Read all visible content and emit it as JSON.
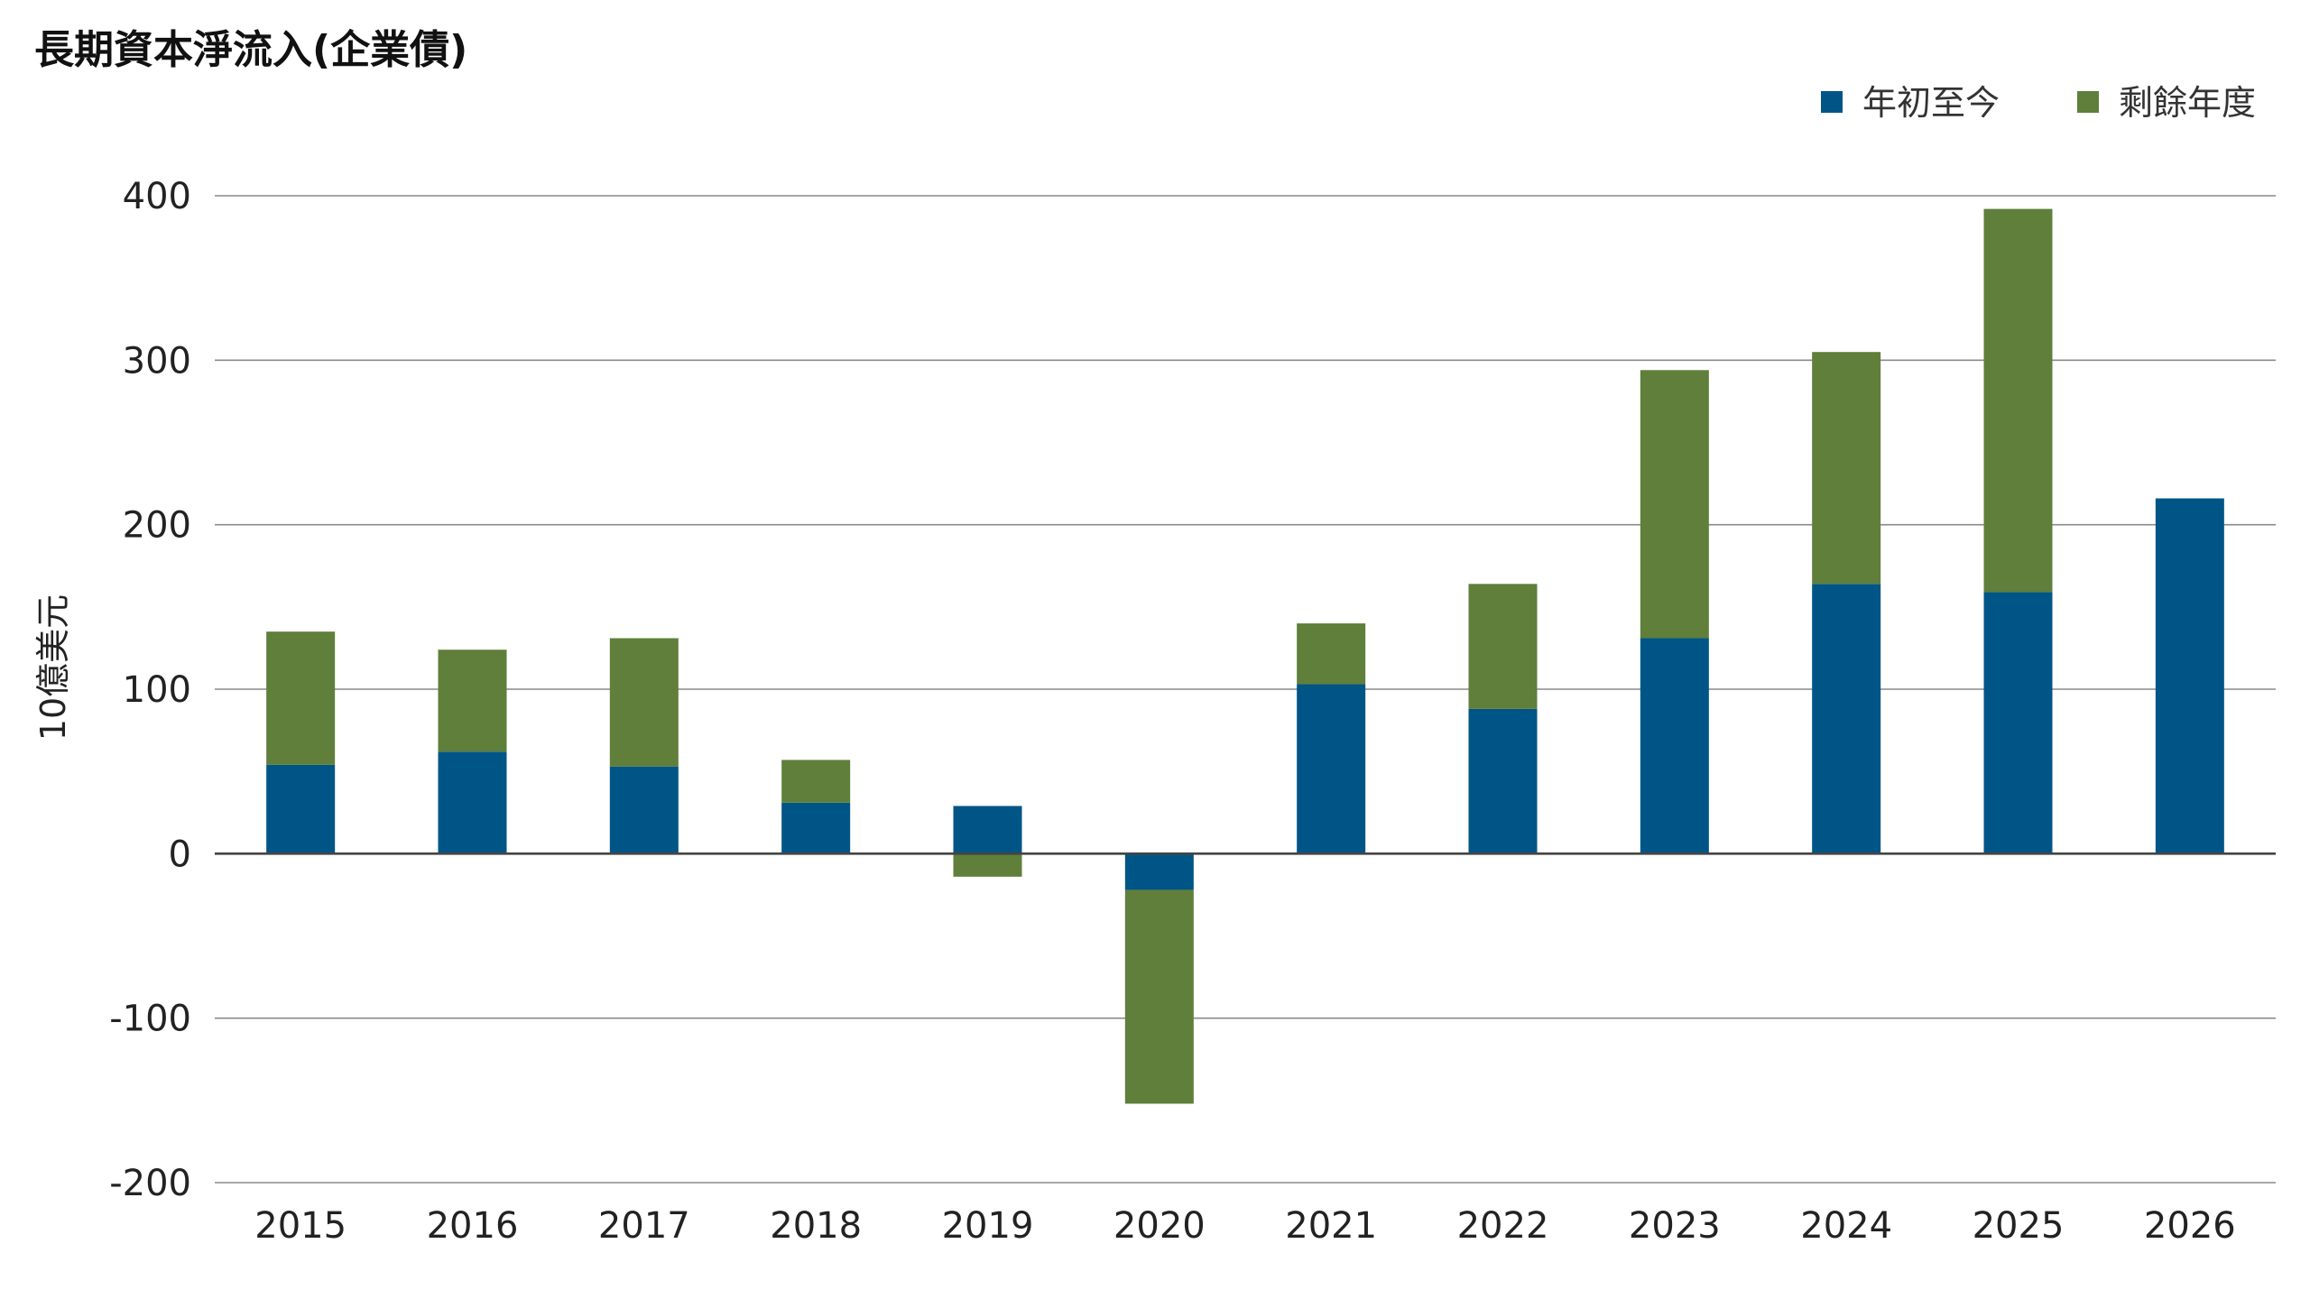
{
  "chart_data": {
    "type": "bar",
    "stacked": true,
    "title": "長期資本淨流入(企業債)",
    "ylabel": "10億美元",
    "xlabel": "",
    "ylim": [
      -200,
      400
    ],
    "yticks": [
      400,
      300,
      200,
      100,
      0,
      -100,
      -200
    ],
    "grid": true,
    "legend_position": "top-right",
    "categories": [
      "2015",
      "2016",
      "2017",
      "2018",
      "2019",
      "2020",
      "2021",
      "2022",
      "2023",
      "2024",
      "2025",
      "2026"
    ],
    "series": [
      {
        "name": "年初至今",
        "color": "#005587",
        "values": [
          54,
          62,
          53,
          31,
          29,
          -22,
          103,
          88,
          131,
          164,
          159,
          216
        ]
      },
      {
        "name": "剩餘年度",
        "color": "#5f7f3b",
        "values": [
          81,
          62,
          78,
          26,
          -14,
          -130,
          37,
          76,
          163,
          141,
          233,
          0
        ]
      }
    ]
  }
}
